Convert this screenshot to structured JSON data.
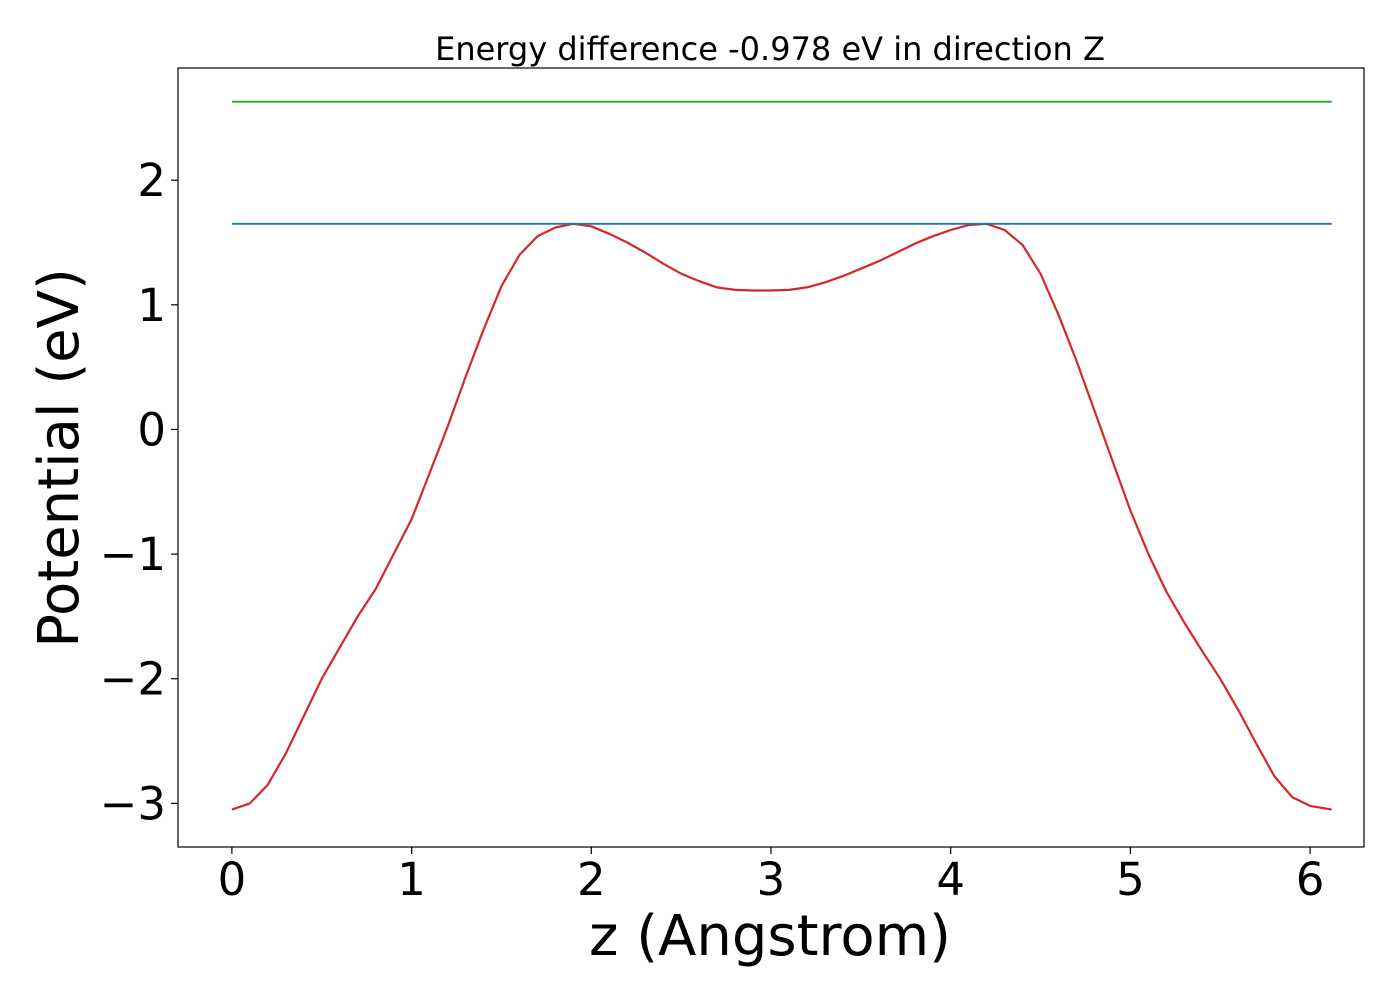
{
  "chart_data": {
    "type": "line",
    "title": "Energy difference -0.978 eV in direction Z",
    "xlabel": "z (Angstrom)",
    "ylabel": "Potential (eV)",
    "xlim": [
      -0.3,
      6.3
    ],
    "ylim": [
      -3.35,
      2.9
    ],
    "x_ticks": [
      0,
      1,
      2,
      3,
      4,
      5,
      6
    ],
    "y_ticks": [
      -3,
      -2,
      -1,
      0,
      1,
      2
    ],
    "x_tick_labels": [
      "0",
      "1",
      "2",
      "3",
      "4",
      "5",
      "6"
    ],
    "y_tick_labels": [
      "−3",
      "−2",
      "−1",
      "0",
      "1",
      "2"
    ],
    "grid": false,
    "legend": "none",
    "series": [
      {
        "color": "#d62728",
        "x": [
          0,
          0.1,
          0.2,
          0.3,
          0.4,
          0.5,
          0.6,
          0.7,
          0.8,
          0.9,
          1.0,
          1.1,
          1.2,
          1.3,
          1.4,
          1.5,
          1.6,
          1.7,
          1.8,
          1.9,
          2.0,
          2.1,
          2.2,
          2.3,
          2.4,
          2.5,
          2.6,
          2.7,
          2.8,
          2.9,
          3.0,
          3.1,
          3.2,
          3.3,
          3.4,
          3.5,
          3.6,
          3.7,
          3.8,
          3.9,
          4.0,
          4.1,
          4.2,
          4.3,
          4.4,
          4.5,
          4.6,
          4.7,
          4.8,
          4.9,
          5.0,
          5.1,
          5.2,
          5.3,
          5.4,
          5.5,
          5.6,
          5.7,
          5.8,
          5.9,
          6.0,
          6.12
        ],
        "values": [
          -3.05,
          -3.0,
          -2.85,
          -2.6,
          -2.3,
          -2.0,
          -1.75,
          -1.5,
          -1.28,
          -1.0,
          -0.72,
          -0.35,
          0.02,
          0.42,
          0.8,
          1.15,
          1.4,
          1.55,
          1.62,
          1.65,
          1.63,
          1.57,
          1.5,
          1.42,
          1.33,
          1.25,
          1.19,
          1.14,
          1.12,
          1.115,
          1.115,
          1.12,
          1.14,
          1.18,
          1.23,
          1.29,
          1.35,
          1.42,
          1.49,
          1.55,
          1.6,
          1.64,
          1.65,
          1.6,
          1.48,
          1.25,
          0.92,
          0.55,
          0.15,
          -0.25,
          -0.65,
          -1.0,
          -1.3,
          -1.55,
          -1.78,
          -2.0,
          -2.25,
          -2.52,
          -2.78,
          -2.95,
          -3.02,
          -3.05
        ]
      },
      {
        "color": "#1f77b4",
        "x": [
          0,
          6.12
        ],
        "values": [
          1.65,
          1.65
        ]
      },
      {
        "color": "#2ca02c",
        "x": [
          0,
          6.12
        ],
        "values": [
          2.63,
          2.63
        ]
      }
    ]
  }
}
